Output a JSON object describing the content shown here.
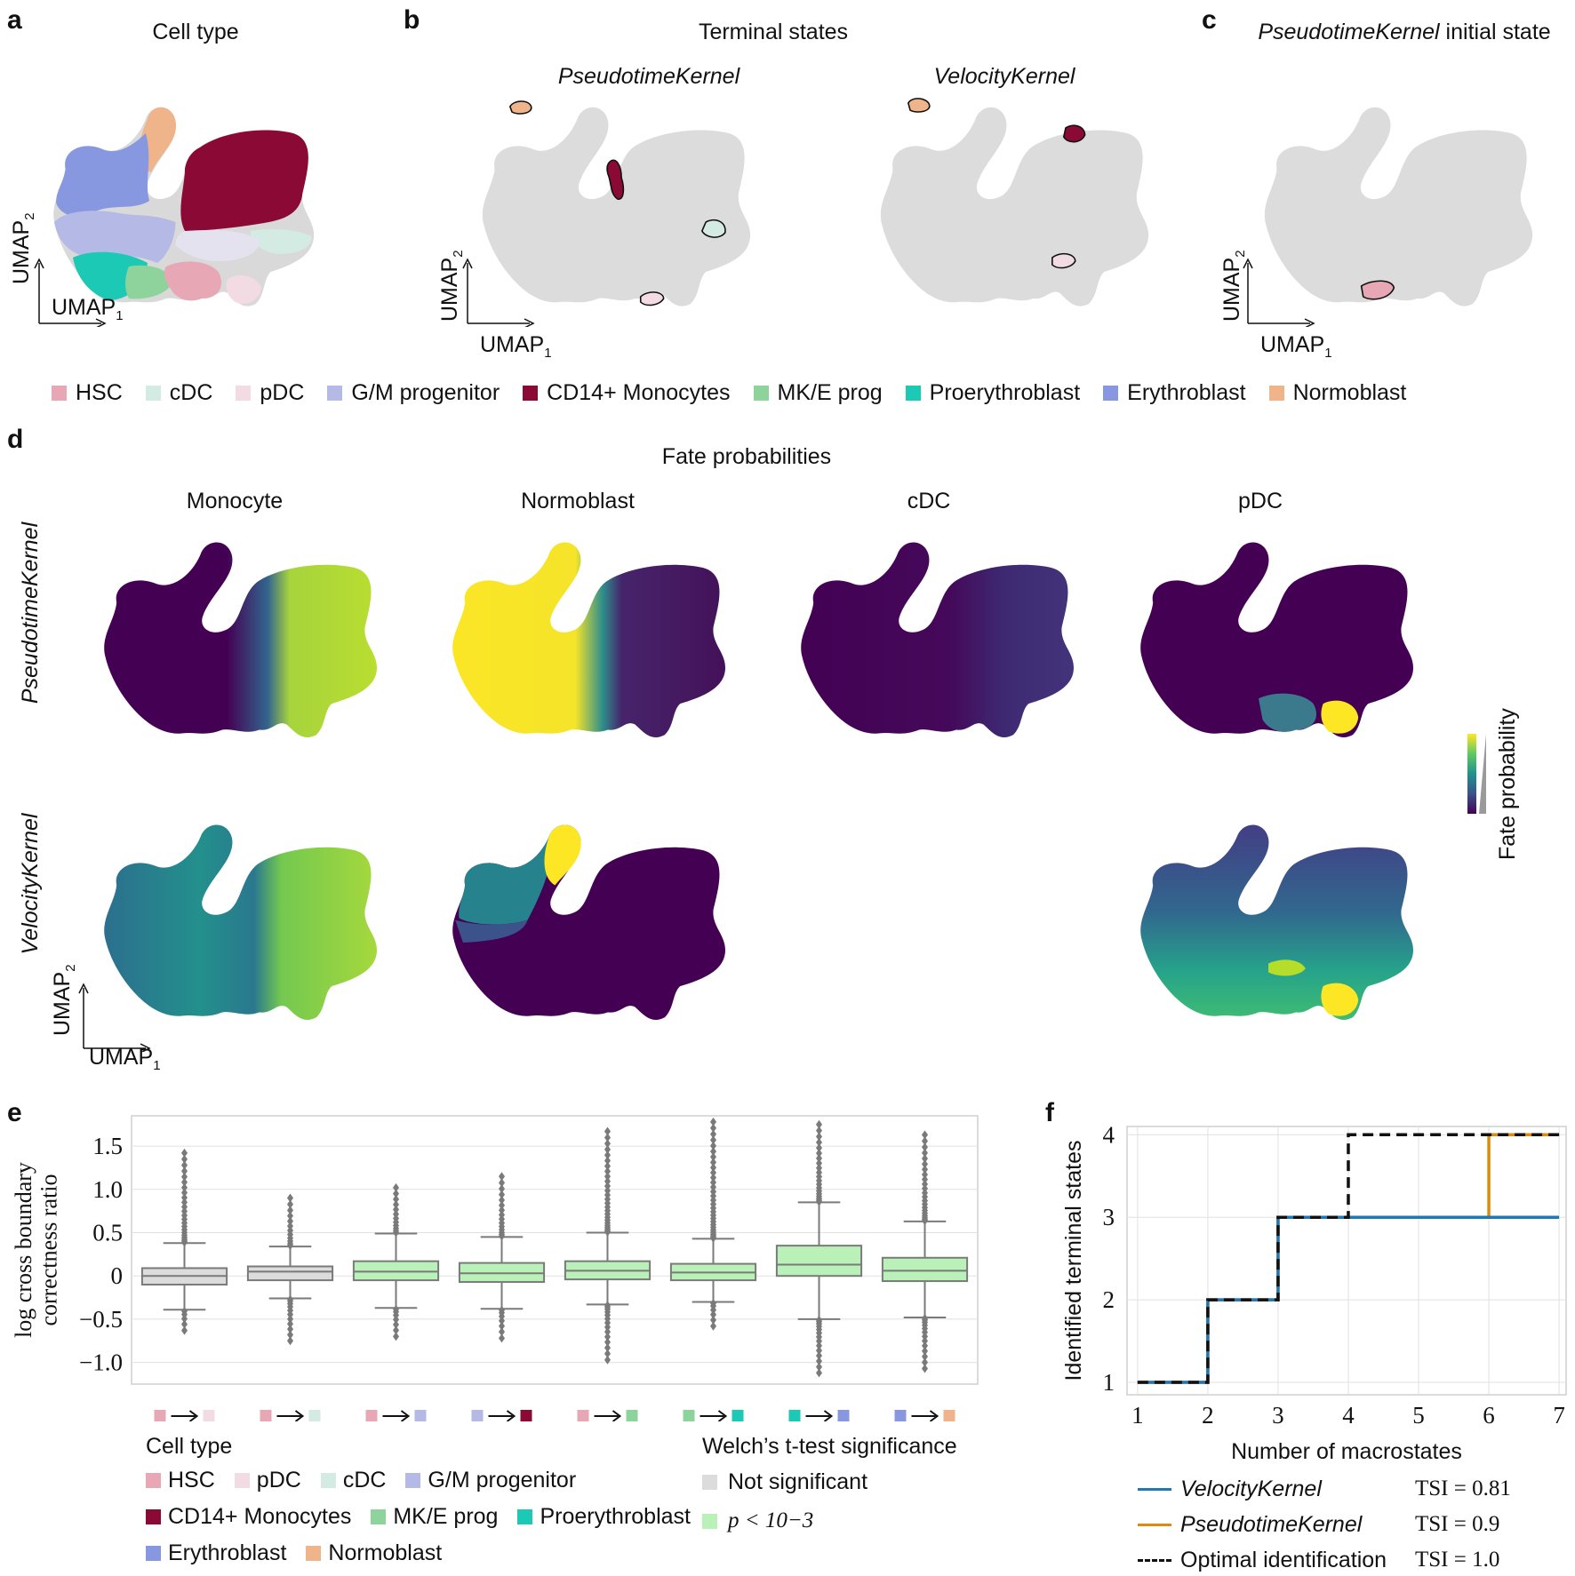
{
  "panels": {
    "a": {
      "letter": "a",
      "title": "Cell type"
    },
    "b": {
      "letter": "b",
      "title": "Terminal states",
      "sub_left": "PseudotimeKernel",
      "sub_right": "VelocityKernel"
    },
    "c": {
      "letter": "c",
      "title_italic": "PseudotimeKernel",
      "title_rest": " initial state"
    },
    "d": {
      "letter": "d",
      "title": "Fate probabilities",
      "columns": [
        "Monocyte",
        "Normoblast",
        "cDC",
        "pDC"
      ],
      "row_labels": [
        "PseudotimeKernel",
        "VelocityKernel"
      ],
      "colorbar_label": "Fate probability"
    },
    "e": {
      "letter": "e"
    },
    "f": {
      "letter": "f"
    }
  },
  "umap_axes": {
    "x": "UMAP",
    "y": "UMAP",
    "x_sub": "1",
    "y_sub": "2"
  },
  "cell_type_legend": [
    {
      "label": "HSC",
      "color": "#e8a7b4"
    },
    {
      "label": "cDC",
      "color": "#d3ebe3"
    },
    {
      "label": "pDC",
      "color": "#f2dbe3"
    },
    {
      "label": "G/M progenitor",
      "color": "#b4b9e5"
    },
    {
      "label": "CD14+ Monocytes",
      "color": "#8b0a35"
    },
    {
      "label": "MK/E prog",
      "color": "#8fd39c"
    },
    {
      "label": "Proerythroblast",
      "color": "#1cc9b5"
    },
    {
      "label": "Erythroblast",
      "color": "#8898e0"
    },
    {
      "label": "Normoblast",
      "color": "#efb48a"
    }
  ],
  "chart_data": [
    {
      "type": "box",
      "panel": "e",
      "ylabel": "log cross boundary correctness ratio",
      "ylim": [
        -1.25,
        1.85
      ],
      "yticks": [
        "1.5",
        "1.0",
        "0.5",
        "0",
        "−0.5",
        "−1.0"
      ],
      "ytick_values": [
        1.5,
        1.0,
        0.5,
        0,
        -0.5,
        -1.0
      ],
      "grid": true,
      "transitions": [
        {
          "from": "HSC",
          "to": "pDC",
          "from_color": "#e8a7b4",
          "to_color": "#f2dbe3",
          "q1": -0.1,
          "median": 0.0,
          "q3": 0.09,
          "wlo": -0.39,
          "whi": 0.38,
          "omin": -0.63,
          "omax": 1.42,
          "significant": false
        },
        {
          "from": "HSC",
          "to": "cDC",
          "from_color": "#e8a7b4",
          "to_color": "#d3ebe3",
          "q1": -0.05,
          "median": 0.05,
          "q3": 0.11,
          "wlo": -0.26,
          "whi": 0.34,
          "omin": -0.75,
          "omax": 0.9,
          "significant": false
        },
        {
          "from": "HSC",
          "to": "G/M progenitor",
          "from_color": "#e8a7b4",
          "to_color": "#b4b9e5",
          "q1": -0.05,
          "median": 0.05,
          "q3": 0.17,
          "wlo": -0.37,
          "whi": 0.49,
          "omin": -0.7,
          "omax": 1.02,
          "significant": true
        },
        {
          "from": "G/M progenitor",
          "to": "CD14+ Monocytes",
          "from_color": "#b4b9e5",
          "to_color": "#8b0a35",
          "q1": -0.07,
          "median": 0.03,
          "q3": 0.15,
          "wlo": -0.38,
          "whi": 0.45,
          "omin": -0.72,
          "omax": 1.15,
          "significant": true
        },
        {
          "from": "HSC",
          "to": "MK/E prog",
          "from_color": "#e8a7b4",
          "to_color": "#8fd39c",
          "q1": -0.04,
          "median": 0.06,
          "q3": 0.17,
          "wlo": -0.33,
          "whi": 0.5,
          "omin": -0.97,
          "omax": 1.67,
          "significant": true
        },
        {
          "from": "MK/E prog",
          "to": "Proerythroblast",
          "from_color": "#8fd39c",
          "to_color": "#1cc9b5",
          "q1": -0.05,
          "median": 0.04,
          "q3": 0.14,
          "wlo": -0.3,
          "whi": 0.43,
          "omin": -0.58,
          "omax": 1.78,
          "significant": true
        },
        {
          "from": "Proerythroblast",
          "to": "Erythroblast",
          "from_color": "#1cc9b5",
          "to_color": "#8898e0",
          "q1": 0.0,
          "median": 0.13,
          "q3": 0.35,
          "wlo": -0.5,
          "whi": 0.85,
          "omin": -1.12,
          "omax": 1.75,
          "significant": true
        },
        {
          "from": "Erythroblast",
          "to": "Normoblast",
          "from_color": "#8898e0",
          "to_color": "#efb48a",
          "q1": -0.06,
          "median": 0.06,
          "q3": 0.21,
          "wlo": -0.48,
          "whi": 0.63,
          "omin": -1.07,
          "omax": 1.63,
          "significant": true
        }
      ],
      "legend_cell_type_title": "Cell type",
      "legend_cell_types": [
        {
          "label": "HSC",
          "color": "#e8a7b4"
        },
        {
          "label": "pDC",
          "color": "#f2dbe3"
        },
        {
          "label": "cDC",
          "color": "#d3ebe3"
        },
        {
          "label": "G/M progenitor",
          "color": "#b4b9e5"
        },
        {
          "label": "CD14+ Monocytes",
          "color": "#8b0a35"
        },
        {
          "label": "MK/E prog",
          "color": "#8fd39c"
        },
        {
          "label": "Proerythroblast",
          "color": "#1cc9b5"
        },
        {
          "label": "Erythroblast",
          "color": "#8898e0"
        },
        {
          "label": "Normoblast",
          "color": "#efb48a"
        }
      ],
      "legend_sig_title": "Welch’s t-test significance",
      "legend_sig": [
        {
          "label": "Not significant",
          "color": "#dcdcdc"
        },
        {
          "label": "p < 10−3",
          "color": "#b9f1b9"
        }
      ]
    },
    {
      "type": "line",
      "panel": "f",
      "xlabel": "Number of macrostates",
      "ylabel": "Identified terminal states",
      "xlim": [
        0.85,
        7.1
      ],
      "ylim": [
        0.85,
        4.1
      ],
      "xticks": [
        1,
        2,
        3,
        4,
        5,
        6,
        7
      ],
      "yticks": [
        1,
        2,
        3,
        4
      ],
      "grid": true,
      "x": [
        1,
        2,
        3,
        4,
        5,
        6,
        7
      ],
      "series": [
        {
          "name": "VelocityKernel",
          "values": [
            1,
            2,
            3,
            3,
            3,
            3,
            3
          ],
          "color": "#1f77b4",
          "style": "solid",
          "tsi": "TSI = 0.81"
        },
        {
          "name": "PseudotimeKernel",
          "values": [
            1,
            2,
            3,
            3,
            3,
            4,
            4
          ],
          "color": "#e08a0b",
          "style": "solid",
          "tsi": "TSI = 0.9"
        },
        {
          "name": "Optimal identification",
          "values": [
            1,
            2,
            3,
            4,
            4,
            4,
            4
          ],
          "color": "#111111",
          "style": "dashed",
          "tsi": "TSI = 1.0"
        }
      ]
    }
  ]
}
